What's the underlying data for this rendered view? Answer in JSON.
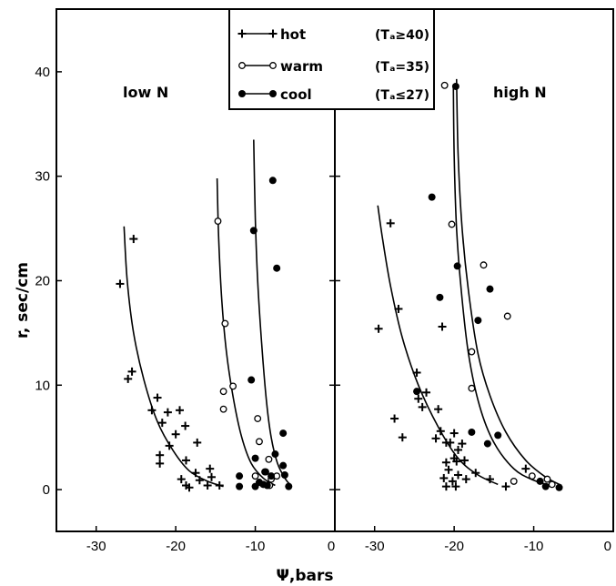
{
  "chart_data": {
    "type": "scatter",
    "ylabel": "r, sec/cm",
    "xlabel": "Ψ,bars",
    "ylim": [
      -4,
      46
    ],
    "xlim": [
      -35,
      0
    ],
    "yticks": [
      0,
      10,
      20,
      30,
      40
    ],
    "xticks": [
      -30,
      -20,
      -10,
      0
    ],
    "xtick_labels": [
      "-30",
      "-20",
      "-10",
      "0"
    ],
    "ytick_labels": [
      "0",
      "10",
      "20",
      "30",
      "40"
    ],
    "legend": {
      "placement": "top-center",
      "entries": [
        {
          "key": "hot",
          "label": "hot",
          "condition": "(Tₐ≥40)",
          "marker": "plus"
        },
        {
          "key": "warm",
          "label": "warm",
          "condition": "(Tₐ=35)",
          "marker": "open-circle"
        },
        {
          "key": "cool",
          "label": "cool",
          "condition": "(Tₐ≤27)",
          "marker": "filled-circle"
        }
      ]
    },
    "panels": [
      {
        "title": "low N",
        "series": [
          {
            "key": "hot",
            "points": [
              [
                -25.3,
                24.0
              ],
              [
                -27.0,
                19.7
              ],
              [
                -25.5,
                11.3
              ],
              [
                -26.0,
                10.6
              ],
              [
                -22.3,
                8.8
              ],
              [
                -19.5,
                7.6
              ],
              [
                -21.0,
                7.4
              ],
              [
                -23.0,
                7.6
              ],
              [
                -18.8,
                6.1
              ],
              [
                -21.7,
                6.4
              ],
              [
                -20.0,
                5.3
              ],
              [
                -20.8,
                4.2
              ],
              [
                -17.3,
                4.5
              ],
              [
                -22.0,
                3.3
              ],
              [
                -22.0,
                2.5
              ],
              [
                -18.7,
                2.8
              ],
              [
                -17.5,
                1.6
              ],
              [
                -15.7,
                2.0
              ],
              [
                -19.3,
                1.0
              ],
              [
                -18.7,
                0.4
              ],
              [
                -17.0,
                0.9
              ],
              [
                -18.3,
                0.2
              ],
              [
                -15.5,
                1.2
              ],
              [
                -16.0,
                0.4
              ],
              [
                -14.5,
                0.4
              ]
            ]
          },
          {
            "key": "warm",
            "points": [
              [
                -14.7,
                25.7
              ],
              [
                -13.8,
                15.9
              ],
              [
                -14.0,
                9.4
              ],
              [
                -12.8,
                9.9
              ],
              [
                -14.0,
                7.7
              ],
              [
                -9.7,
                6.8
              ],
              [
                -9.5,
                4.6
              ],
              [
                -8.3,
                2.9
              ],
              [
                -10.0,
                1.3
              ],
              [
                -8.8,
                1.7
              ],
              [
                -8.0,
                1.0
              ],
              [
                -7.3,
                1.3
              ],
              [
                -8.2,
                0.4
              ]
            ]
          },
          {
            "key": "cool",
            "points": [
              [
                -7.8,
                29.6
              ],
              [
                -10.2,
                24.8
              ],
              [
                -7.3,
                21.2
              ],
              [
                -10.5,
                10.5
              ],
              [
                -6.5,
                5.4
              ],
              [
                -7.5,
                3.4
              ],
              [
                -6.5,
                2.3
              ],
              [
                -10.0,
                3.0
              ],
              [
                -8.7,
                1.7
              ],
              [
                -8.0,
                1.3
              ],
              [
                -6.3,
                1.4
              ],
              [
                -9.5,
                0.7
              ],
              [
                -12.0,
                1.3
              ],
              [
                -12.0,
                0.3
              ],
              [
                -10.0,
                0.3
              ],
              [
                -9.0,
                0.5
              ],
              [
                -8.5,
                0.4
              ],
              [
                -5.8,
                0.3
              ]
            ]
          }
        ],
        "curves": [
          {
            "key": "hot",
            "points": [
              [
                -26.5,
                25.2
              ],
              [
                -26.1,
                20
              ],
              [
                -25.3,
                15
              ],
              [
                -24,
                10.5
              ],
              [
                -22.3,
                6.5
              ],
              [
                -20.3,
                3.7
              ],
              [
                -18.3,
                1.8
              ],
              [
                -16,
                0.8
              ],
              [
                -14,
                0.3
              ]
            ]
          },
          {
            "key": "warm",
            "points": [
              [
                -14.8,
                29.8
              ],
              [
                -14.6,
                24
              ],
              [
                -14.2,
                18
              ],
              [
                -13.6,
                13
              ],
              [
                -12.7,
                8.5
              ],
              [
                -11.7,
                5
              ],
              [
                -10.5,
                2.5
              ],
              [
                -9,
                1.1
              ],
              [
                -7.5,
                0.4
              ]
            ]
          },
          {
            "key": "cool",
            "points": [
              [
                -10.2,
                33.5
              ],
              [
                -10.0,
                26
              ],
              [
                -9.7,
                20
              ],
              [
                -9.2,
                14
              ],
              [
                -8.6,
                8.5
              ],
              [
                -8,
                5
              ],
              [
                -7.2,
                2.5
              ],
              [
                -6.2,
                1
              ],
              [
                -5.5,
                0.4
              ]
            ]
          }
        ]
      },
      {
        "title": "high N",
        "series": [
          {
            "key": "hot",
            "points": [
              [
                -28.0,
                25.5
              ],
              [
                -27.0,
                17.3
              ],
              [
                -29.5,
                15.4
              ],
              [
                -24.7,
                11.2
              ],
              [
                -21.5,
                15.6
              ],
              [
                -27.5,
                6.8
              ],
              [
                -26.5,
                5.0
              ],
              [
                -24.5,
                8.7
              ],
              [
                -24.0,
                7.9
              ],
              [
                -23.5,
                9.3
              ],
              [
                -22.0,
                7.7
              ],
              [
                -21.7,
                5.6
              ],
              [
                -20.5,
                4.5
              ],
              [
                -20.0,
                5.4
              ],
              [
                -19.5,
                3.8
              ],
              [
                -22.3,
                4.9
              ],
              [
                -21.0,
                4.5
              ],
              [
                -20.0,
                3.0
              ],
              [
                -19.0,
                4.4
              ],
              [
                -21.0,
                2.6
              ],
              [
                -19.7,
                2.7
              ],
              [
                -18.7,
                2.8
              ],
              [
                -20.7,
                1.9
              ],
              [
                -19.5,
                1.4
              ],
              [
                -21.3,
                1.1
              ],
              [
                -20.2,
                0.8
              ],
              [
                -18.5,
                1.0
              ],
              [
                -17.3,
                1.6
              ],
              [
                -19.8,
                0.3
              ],
              [
                -21.0,
                0.3
              ],
              [
                -15.5,
                1.0
              ],
              [
                -13.5,
                0.3
              ],
              [
                -11.0,
                2.0
              ]
            ]
          },
          {
            "key": "warm",
            "points": [
              [
                -21.2,
                38.7
              ],
              [
                -20.3,
                25.4
              ],
              [
                -16.3,
                21.5
              ],
              [
                -13.3,
                16.6
              ],
              [
                -17.8,
                13.2
              ],
              [
                -17.8,
                9.7
              ],
              [
                -12.5,
                0.8
              ],
              [
                -10.2,
                1.3
              ],
              [
                -8.3,
                1.0
              ],
              [
                -7.7,
                0.5
              ]
            ]
          },
          {
            "key": "cool",
            "points": [
              [
                -19.8,
                38.6
              ],
              [
                -22.8,
                28.0
              ],
              [
                -19.6,
                21.4
              ],
              [
                -21.8,
                18.4
              ],
              [
                -15.5,
                19.2
              ],
              [
                -17.0,
                16.2
              ],
              [
                -24.7,
                9.4
              ],
              [
                -17.8,
                5.5
              ],
              [
                -14.5,
                5.2
              ],
              [
                -15.8,
                4.4
              ],
              [
                -9.2,
                0.8
              ],
              [
                -6.8,
                0.2
              ],
              [
                -8.5,
                0.3
              ]
            ]
          }
        ],
        "curves": [
          {
            "key": "hot",
            "points": [
              [
                -29.6,
                27.2
              ],
              [
                -29.0,
                24
              ],
              [
                -28,
                19.5
              ],
              [
                -26.5,
                14.5
              ],
              [
                -24.5,
                10
              ],
              [
                -22,
                6
              ],
              [
                -19.5,
                3
              ],
              [
                -17,
                1.4
              ],
              [
                -14.5,
                0.5
              ]
            ]
          },
          {
            "key": "warm",
            "points": [
              [
                -20.1,
                38.6
              ],
              [
                -20.0,
                32
              ],
              [
                -19.7,
                25
              ],
              [
                -19.1,
                19
              ],
              [
                -18.2,
                13
              ],
              [
                -16.8,
                8
              ],
              [
                -15,
                4.5
              ],
              [
                -12.5,
                2
              ],
              [
                -10,
                0.9
              ],
              [
                -7.5,
                0.3
              ]
            ]
          },
          {
            "key": "cool",
            "points": [
              [
                -19.7,
                39.3
              ],
              [
                -19.5,
                32
              ],
              [
                -19,
                25
              ],
              [
                -18.2,
                19
              ],
              [
                -17,
                13
              ],
              [
                -15.5,
                9
              ],
              [
                -13.5,
                5.5
              ],
              [
                -11,
                2.8
              ],
              [
                -8.5,
                1.2
              ],
              [
                -6.5,
                0.4
              ]
            ]
          }
        ]
      }
    ]
  }
}
